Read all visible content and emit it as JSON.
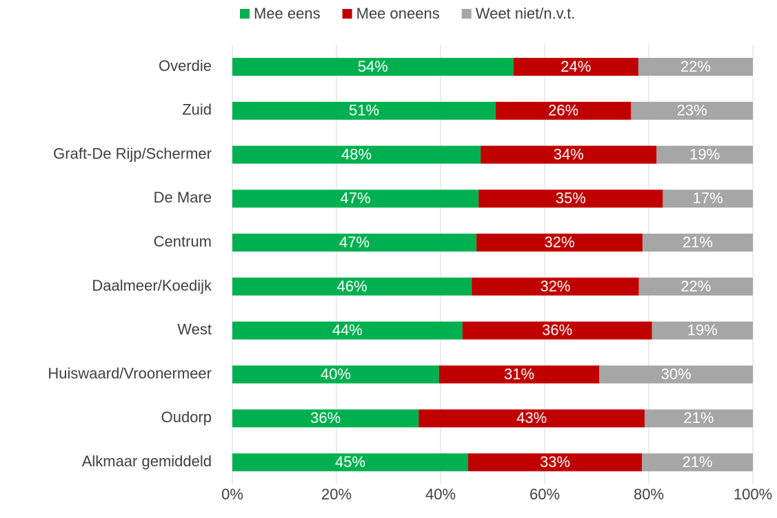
{
  "chart_data": {
    "type": "stacked_barh",
    "categories": [
      "Overdie",
      "Zuid",
      "Graft-De Rijp/Schermer",
      "De Mare",
      "Centrum",
      "Daalmeer/Koedijk",
      "West",
      "Huiswaard/Vroonermeer",
      "Oudorp",
      "Alkmaar gemiddeld"
    ],
    "series": [
      {
        "name": "Mee eens",
        "color": "#00b050",
        "values": [
          54.0,
          50.6,
          47.7,
          47.3,
          46.9,
          46.0,
          44.2,
          39.7,
          35.8,
          45.3
        ],
        "value_labels": [
          "54%",
          "51%",
          "48%",
          "47%",
          "47%",
          "46%",
          "44%",
          "40%",
          "36%",
          "45%"
        ]
      },
      {
        "name": "Mee oneens",
        "color": "#c00000",
        "values": [
          24.0,
          26.0,
          33.8,
          35.4,
          31.9,
          32.1,
          36.4,
          30.8,
          43.4,
          33.4
        ],
        "value_labels": [
          "24%",
          "26%",
          "34%",
          "35%",
          "32%",
          "32%",
          "36%",
          "31%",
          "43%",
          "33%"
        ]
      },
      {
        "name": "Weet niet/n.v.t.",
        "color": "#a6a6a6",
        "values": [
          22.0,
          23.4,
          18.5,
          17.3,
          21.2,
          21.9,
          19.4,
          29.5,
          20.8,
          21.3
        ],
        "value_labels": [
          "22%",
          "23%",
          "19%",
          "17%",
          "21%",
          "22%",
          "19%",
          "30%",
          "21%",
          "21%"
        ]
      }
    ],
    "xlim": [
      0,
      100
    ],
    "xticks": [
      {
        "value": 0,
        "label": "0%"
      },
      {
        "value": 20,
        "label": "20%"
      },
      {
        "value": 40,
        "label": "40%"
      },
      {
        "value": 60,
        "label": "60%"
      },
      {
        "value": 80,
        "label": "80%"
      },
      {
        "value": 100,
        "label": "100%"
      }
    ],
    "grid": true,
    "legend": "top"
  }
}
